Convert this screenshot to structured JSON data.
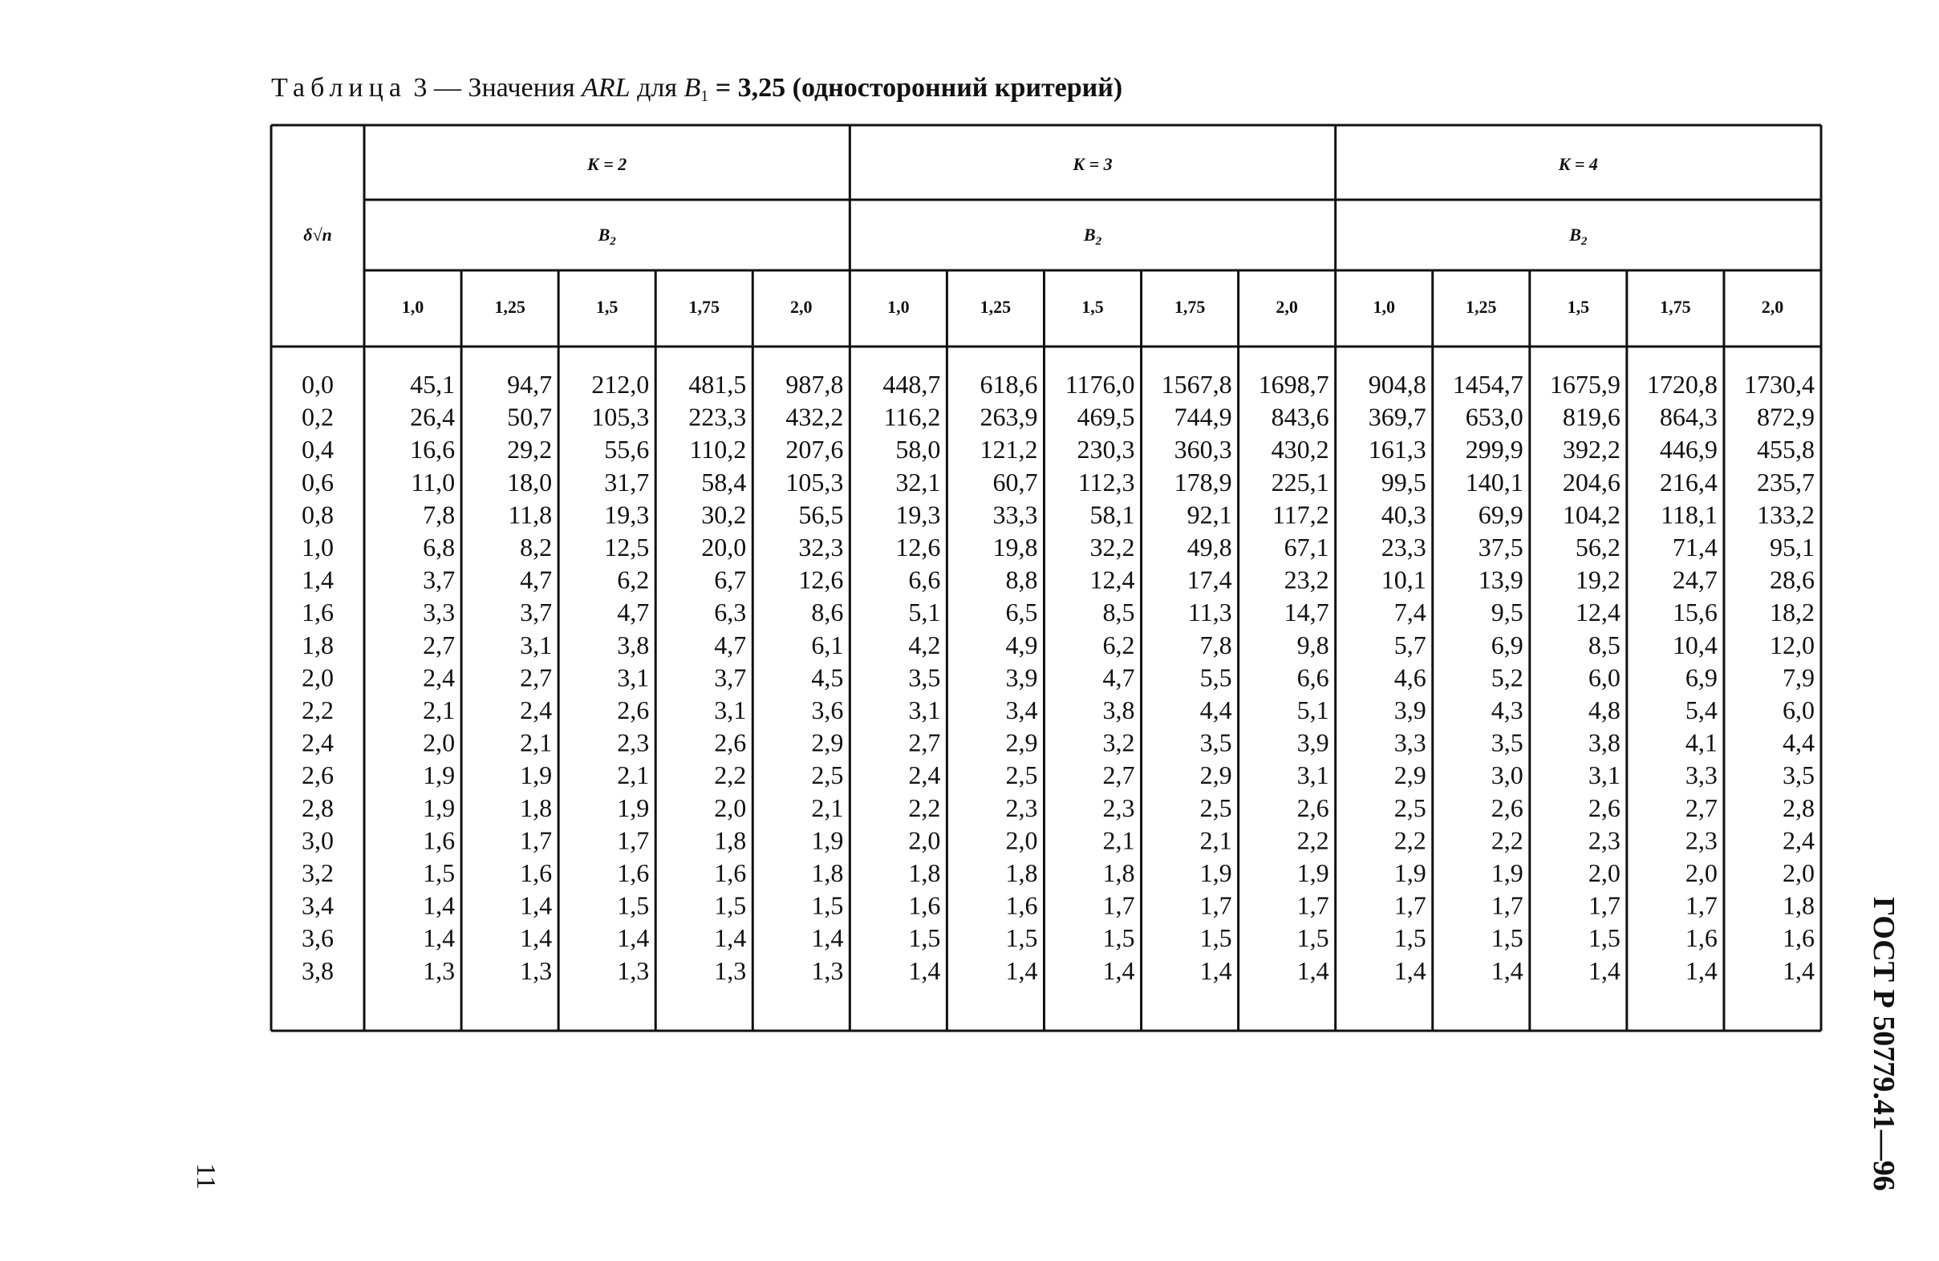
{
  "page": {
    "title": {
      "label": "Таблица",
      "number": " 3 — Значения ",
      "arl": "ARL",
      "for": " для ",
      "b": "B",
      "sub": "1",
      "rest": " = 3,25 (односторонний критерий)"
    },
    "side_text": "ГОСТ Р 50779.41—96",
    "page_number": "11"
  },
  "table": {
    "row_header": "δ√n",
    "groups": [
      "K = 2",
      "K = 3",
      "K = 4"
    ],
    "subheader": {
      "symbol": "B",
      "sub": "2"
    },
    "columns": [
      "1,0",
      "1,25",
      "1,5",
      "1,75",
      "2,0"
    ],
    "rows": [
      [
        "0,0",
        "45,1",
        "94,7",
        "212,0",
        "481,5",
        "987,8",
        "448,7",
        "618,6",
        "1176,0",
        "1567,8",
        "1698,7",
        "904,8",
        "1454,7",
        "1675,9",
        "1720,8",
        "1730,4"
      ],
      [
        "0,2",
        "26,4",
        "50,7",
        "105,3",
        "223,3",
        "432,2",
        "116,2",
        "263,9",
        "469,5",
        "744,9",
        "843,6",
        "369,7",
        "653,0",
        "819,6",
        "864,3",
        "872,9"
      ],
      [
        "0,4",
        "16,6",
        "29,2",
        "55,6",
        "110,2",
        "207,6",
        "58,0",
        "121,2",
        "230,3",
        "360,3",
        "430,2",
        "161,3",
        "299,9",
        "392,2",
        "446,9",
        "455,8"
      ],
      [
        "0,6",
        "11,0",
        "18,0",
        "31,7",
        "58,4",
        "105,3",
        "32,1",
        "60,7",
        "112,3",
        "178,9",
        "225,1",
        "99,5",
        "140,1",
        "204,6",
        "216,4",
        "235,7"
      ],
      [
        "0,8",
        "7,8",
        "11,8",
        "19,3",
        "30,2",
        "56,5",
        "19,3",
        "33,3",
        "58,1",
        "92,1",
        "117,2",
        "40,3",
        "69,9",
        "104,2",
        "118,1",
        "133,2"
      ],
      [
        "1,0",
        "6,8",
        "8,2",
        "12,5",
        "20,0",
        "32,3",
        "12,6",
        "19,8",
        "32,2",
        "49,8",
        "67,1",
        "23,3",
        "37,5",
        "56,2",
        "71,4",
        "95,1"
      ],
      [
        "1,4",
        "3,7",
        "4,7",
        "6,2",
        "6,7",
        "12,6",
        "6,6",
        "8,8",
        "12,4",
        "17,4",
        "23,2",
        "10,1",
        "13,9",
        "19,2",
        "24,7",
        "28,6"
      ],
      [
        "1,6",
        "3,3",
        "3,7",
        "4,7",
        "6,3",
        "8,6",
        "5,1",
        "6,5",
        "8,5",
        "11,3",
        "14,7",
        "7,4",
        "9,5",
        "12,4",
        "15,6",
        "18,2"
      ],
      [
        "1,8",
        "2,7",
        "3,1",
        "3,8",
        "4,7",
        "6,1",
        "4,2",
        "4,9",
        "6,2",
        "7,8",
        "9,8",
        "5,7",
        "6,9",
        "8,5",
        "10,4",
        "12,0"
      ],
      [
        "2,0",
        "2,4",
        "2,7",
        "3,1",
        "3,7",
        "4,5",
        "3,5",
        "3,9",
        "4,7",
        "5,5",
        "6,6",
        "4,6",
        "5,2",
        "6,0",
        "6,9",
        "7,9"
      ],
      [
        "2,2",
        "2,1",
        "2,4",
        "2,6",
        "3,1",
        "3,6",
        "3,1",
        "3,4",
        "3,8",
        "4,4",
        "5,1",
        "3,9",
        "4,3",
        "4,8",
        "5,4",
        "6,0"
      ],
      [
        "2,4",
        "2,0",
        "2,1",
        "2,3",
        "2,6",
        "2,9",
        "2,7",
        "2,9",
        "3,2",
        "3,5",
        "3,9",
        "3,3",
        "3,5",
        "3,8",
        "4,1",
        "4,4"
      ],
      [
        "2,6",
        "1,9",
        "1,9",
        "2,1",
        "2,2",
        "2,5",
        "2,4",
        "2,5",
        "2,7",
        "2,9",
        "3,1",
        "2,9",
        "3,0",
        "3,1",
        "3,3",
        "3,5"
      ],
      [
        "2,8",
        "1,9",
        "1,8",
        "1,9",
        "2,0",
        "2,1",
        "2,2",
        "2,3",
        "2,3",
        "2,5",
        "2,6",
        "2,5",
        "2,6",
        "2,6",
        "2,7",
        "2,8"
      ],
      [
        "3,0",
        "1,6",
        "1,7",
        "1,7",
        "1,8",
        "1,9",
        "2,0",
        "2,0",
        "2,1",
        "2,1",
        "2,2",
        "2,2",
        "2,2",
        "2,3",
        "2,3",
        "2,4"
      ],
      [
        "3,2",
        "1,5",
        "1,6",
        "1,6",
        "1,6",
        "1,8",
        "1,8",
        "1,8",
        "1,8",
        "1,9",
        "1,9",
        "1,9",
        "1,9",
        "2,0",
        "2,0",
        "2,0"
      ],
      [
        "3,4",
        "1,4",
        "1,4",
        "1,5",
        "1,5",
        "1,5",
        "1,6",
        "1,6",
        "1,7",
        "1,7",
        "1,7",
        "1,7",
        "1,7",
        "1,7",
        "1,7",
        "1,8"
      ],
      [
        "3,6",
        "1,4",
        "1,4",
        "1,4",
        "1,4",
        "1,4",
        "1,5",
        "1,5",
        "1,5",
        "1,5",
        "1,5",
        "1,5",
        "1,5",
        "1,5",
        "1,6",
        "1,6"
      ],
      [
        "3,8",
        "1,3",
        "1,3",
        "1,3",
        "1,3",
        "1,3",
        "1,4",
        "1,4",
        "1,4",
        "1,4",
        "1,4",
        "1,4",
        "1,4",
        "1,4",
        "1,4",
        "1,4"
      ]
    ]
  }
}
